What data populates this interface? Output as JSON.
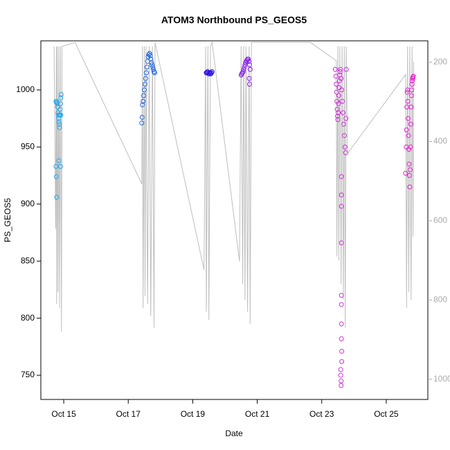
{
  "chart_data": {
    "type": "scatter",
    "title": "ATOM3 Northbound PS_GEOS5",
    "x_label": "Date",
    "y_label": "PS_GEOS5",
    "xlim": [
      14.29,
      26.29
    ],
    "xticks": [
      {
        "value": 15,
        "label": "Oct 15"
      },
      {
        "value": 17,
        "label": "Oct 17"
      },
      {
        "value": 19,
        "label": "Oct 19"
      },
      {
        "value": 21,
        "label": "Oct 21"
      },
      {
        "value": 23,
        "label": "Oct 23"
      },
      {
        "value": 25,
        "label": "Oct 25"
      }
    ],
    "ylim": [
      728.8,
      1043
    ],
    "yticks": [
      750,
      800,
      850,
      900,
      950,
      1000
    ],
    "y2lim": [
      1051,
      146
    ],
    "y2ticks": [
      200,
      400,
      600,
      800,
      1000
    ],
    "series": [
      {
        "type": "line",
        "axis": "y2",
        "color": "#bebebe",
        "x": [
          14.7,
          14.75,
          14.77,
          14.78,
          14.8,
          14.82,
          14.85,
          14.87,
          14.9,
          14.93,
          14.95,
          15.35,
          17.42,
          17.44,
          17.46,
          17.5,
          17.52,
          17.55,
          17.6,
          17.65,
          17.7,
          17.75,
          17.8,
          17.83,
          19.35,
          19.4,
          19.42,
          19.47,
          19.5,
          19.55,
          19.6,
          20.45,
          20.5,
          20.55,
          20.58,
          20.62,
          20.65,
          20.7,
          20.75,
          20.78,
          20.82,
          22.65,
          23.45,
          23.47,
          23.5,
          23.53,
          23.56,
          23.6,
          23.63,
          23.67,
          23.7,
          23.73,
          23.76,
          23.8,
          25.6,
          25.63,
          25.66,
          25.7,
          25.73,
          25.77,
          25.8,
          25.83,
          25.85
        ],
        "values": [
          160,
          620,
          160,
          810,
          160,
          780,
          160,
          820,
          160,
          880,
          160,
          150,
          507,
          160,
          820,
          160,
          790,
          160,
          810,
          160,
          840,
          160,
          870,
          150,
          724,
          160,
          830,
          160,
          850,
          160,
          150,
          703,
          160,
          760,
          160,
          800,
          160,
          830,
          160,
          860,
          150,
          150,
          196,
          690,
          160,
          700,
          160,
          760,
          160,
          800,
          160,
          870,
          160,
          430,
          231,
          820,
          160,
          780,
          160,
          800,
          160,
          640,
          200
        ]
      },
      {
        "color": "#29a8e8",
        "x": [
          14.76,
          14.77,
          14.78,
          14.79,
          14.8,
          14.81,
          14.82,
          14.83,
          14.84,
          14.85,
          14.86,
          14.87,
          14.88,
          14.89,
          14.9,
          14.91,
          14.92,
          14.78,
          14.77,
          14.76,
          14.85,
          14.86,
          14.9,
          14.91
        ],
        "values": [
          990,
          990,
          989,
          989,
          988,
          985,
          980,
          978,
          975,
          972,
          970,
          967,
          978,
          983,
          988,
          993,
          996,
          906,
          924,
          933,
          938,
          978,
          933,
          978
        ]
      },
      {
        "color": "#1f66e0",
        "x": [
          17.42,
          17.43,
          17.44,
          17.46,
          17.48,
          17.5,
          17.52,
          17.54,
          17.56,
          17.58,
          17.6,
          17.62,
          17.64,
          17.66,
          17.68,
          17.7,
          17.72,
          17.74,
          17.76,
          17.78,
          17.8,
          17.82
        ],
        "values": [
          971,
          976,
          987,
          990,
          995,
          1000,
          1005,
          1010,
          1015,
          1020,
          1025,
          1029,
          1031,
          1032,
          1030,
          1027,
          1024,
          1022,
          1020,
          1018,
          1016,
          1015
        ]
      },
      {
        "color": "#2a10e8",
        "x": [
          19.42,
          19.44,
          19.46,
          19.48,
          19.5,
          19.52,
          19.54,
          19.56,
          19.58,
          19.6
        ],
        "values": [
          1015,
          1015,
          1016,
          1015,
          1014,
          1015,
          1015,
          1014,
          1015,
          1016
        ]
      },
      {
        "color": "#8a20e8",
        "x": [
          20.5,
          20.52,
          20.54,
          20.56,
          20.58,
          20.6,
          20.62,
          20.64,
          20.66,
          20.68,
          20.7,
          20.72,
          20.74,
          20.76,
          20.78,
          20.75,
          20.76
        ],
        "values": [
          1013,
          1014,
          1015,
          1016,
          1018,
          1020,
          1022,
          1024,
          1025,
          1026,
          1027,
          1027,
          1025,
          1022,
          1018,
          1010,
          1005
        ]
      },
      {
        "color": "#d030d8",
        "x": [
          23.42,
          23.44,
          23.45,
          23.46,
          23.47,
          23.48,
          23.49,
          23.5,
          23.51,
          23.52,
          23.53,
          23.54,
          23.55,
          23.56,
          23.57,
          23.58,
          23.6,
          23.62,
          23.64,
          23.66,
          23.68,
          23.7,
          23.72,
          23.74,
          23.75,
          23.76,
          23.61,
          23.61,
          23.61,
          23.61,
          23.61,
          23.61,
          23.61,
          23.61,
          23.62,
          23.62,
          23.59,
          23.59,
          23.6,
          23.6
        ],
        "values": [
          1018,
          1012,
          1005,
          998,
          990,
          983,
          977,
          974,
          980,
          988,
          995,
          1002,
          1008,
          1013,
          1016,
          1018,
          1010,
          1000,
          990,
          980,
          970,
          960,
          950,
          945,
          975,
          1018,
          924,
          908,
          898,
          866,
          820,
          812,
          795,
          782,
          771,
          762,
          755,
          750,
          745,
          741
        ]
      },
      {
        "color": "#e81ed0",
        "x": [
          25.6,
          25.62,
          25.63,
          25.64,
          25.65,
          25.66,
          25.67,
          25.68,
          25.69,
          25.7,
          25.71,
          25.72,
          25.73,
          25.74,
          25.75,
          25.76,
          25.77,
          25.78,
          25.79,
          25.8,
          25.81,
          25.82,
          25.83,
          25.84
        ],
        "values": [
          927,
          950,
          965,
          985,
          998,
          1000,
          990,
          975,
          960,
          948,
          935,
          925,
          915,
          930,
          950,
          970,
          985,
          995,
          1000,
          1005,
          1008,
          1010,
          1011,
          1012
        ]
      }
    ]
  }
}
